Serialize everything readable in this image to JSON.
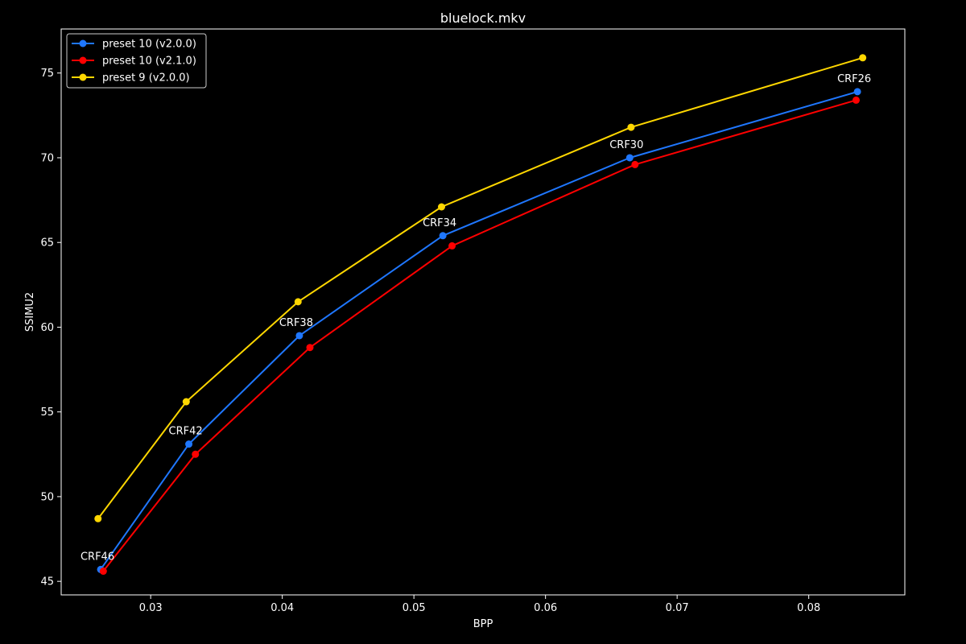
{
  "chart_data": {
    "type": "line",
    "title": "bluelock.mkv",
    "xlabel": "BPP",
    "ylabel": "SSIMU2",
    "xlim": [
      0.0232,
      0.0873
    ],
    "ylim": [
      44.2,
      77.6
    ],
    "xticks": [
      0.03,
      0.04,
      0.05,
      0.06,
      0.07,
      0.08
    ],
    "yticks": [
      45,
      50,
      55,
      60,
      65,
      70,
      75
    ],
    "grid": false,
    "legend_position": "top-left",
    "series": [
      {
        "name": "preset 10 (v2.0.0)",
        "color": "#1f77ff",
        "x": [
          0.0262,
          0.0329,
          0.0413,
          0.0522,
          0.0664,
          0.0837
        ],
        "y": [
          45.7,
          53.1,
          59.5,
          65.4,
          70.0,
          73.9
        ]
      },
      {
        "name": "preset 10 (v2.1.0)",
        "color": "#ff0000",
        "x": [
          0.0264,
          0.0334,
          0.0421,
          0.0529,
          0.0668,
          0.0836
        ],
        "y": [
          45.6,
          52.5,
          58.8,
          64.8,
          69.6,
          73.4
        ]
      },
      {
        "name": "preset 9 (v2.0.0)",
        "color": "#ffd700",
        "x": [
          0.026,
          0.0327,
          0.0412,
          0.0521,
          0.0665,
          0.0841
        ],
        "y": [
          48.7,
          55.6,
          61.5,
          67.1,
          71.8,
          75.9
        ]
      }
    ],
    "annotations": [
      {
        "text": "CRF46",
        "x": 0.0262,
        "y": 45.7
      },
      {
        "text": "CRF42",
        "x": 0.0329,
        "y": 53.1
      },
      {
        "text": "CRF38",
        "x": 0.0413,
        "y": 59.5
      },
      {
        "text": "CRF34",
        "x": 0.0522,
        "y": 65.4
      },
      {
        "text": "CRF30",
        "x": 0.0664,
        "y": 70.0
      },
      {
        "text": "CRF26",
        "x": 0.0837,
        "y": 73.9
      }
    ]
  }
}
